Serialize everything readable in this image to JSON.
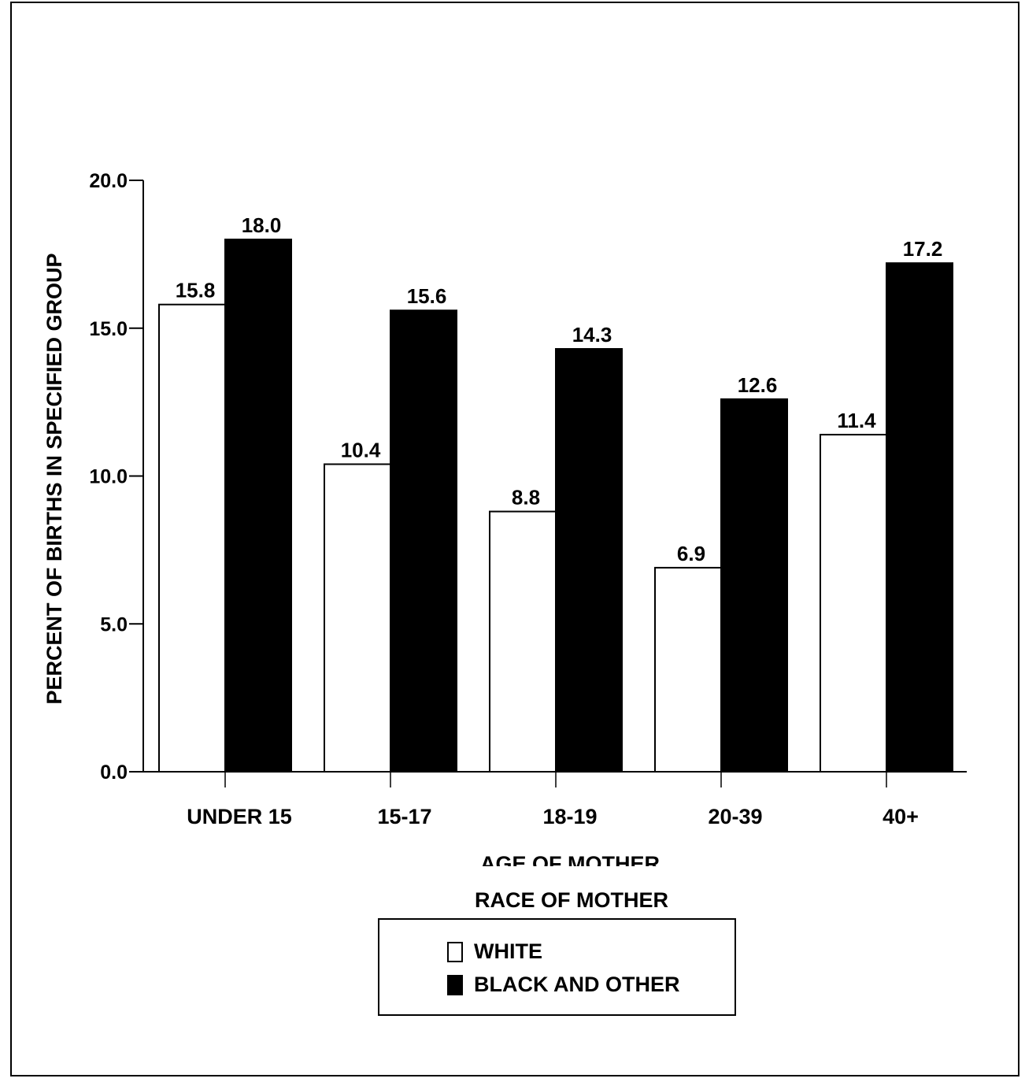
{
  "chart_data": {
    "type": "bar",
    "categories": [
      "UNDER 15",
      "15-17",
      "18-19",
      "20-39",
      "40+"
    ],
    "series": [
      {
        "name": "WHITE",
        "color": "#ffffff",
        "values": [
          15.8,
          10.4,
          8.8,
          6.9,
          11.4
        ]
      },
      {
        "name": "BLACK AND OTHER",
        "color": "#000000",
        "values": [
          18.0,
          15.6,
          14.3,
          12.6,
          17.2
        ]
      }
    ],
    "title": "",
    "xlabel": "AGE OF MOTHER",
    "ylabel": "PERCENT OF BIRTHS IN SPECIFIED GROUP",
    "ylim": [
      0,
      20
    ],
    "yticks": [
      "0.0",
      "5.0",
      "10.0",
      "15.0",
      "20.0"
    ],
    "grid": false,
    "legend": {
      "title": "RACE OF MOTHER",
      "position": "bottom-center",
      "entries": [
        "WHITE",
        "BLACK AND OTHER"
      ]
    }
  }
}
